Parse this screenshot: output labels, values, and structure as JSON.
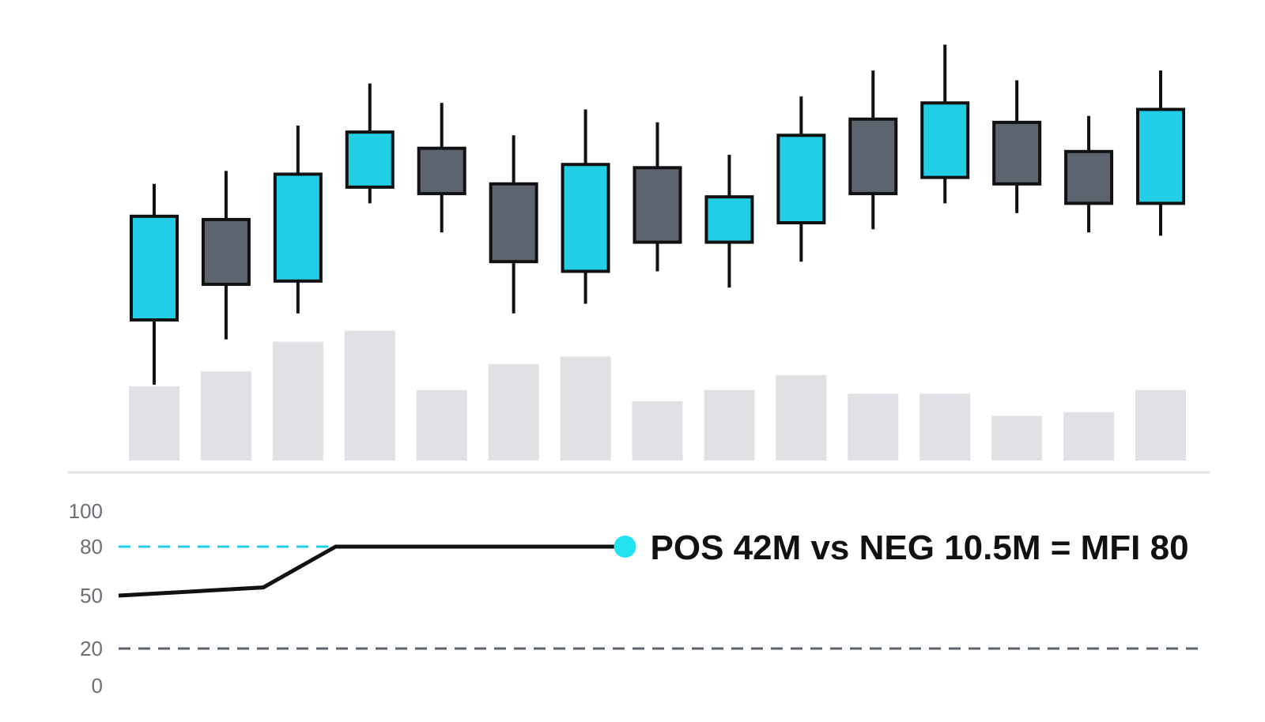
{
  "colors": {
    "bullish": "#22cde6",
    "bearish": "#5c6470",
    "outline": "#111111",
    "volume": "#e0e1e4",
    "separator": "#e4e5e7",
    "overbought_line": "#22cde6",
    "oversold_line": "#5c6470",
    "mfi_line": "#111111",
    "marker": "#22e3ef",
    "tick_text": "#6b6f75"
  },
  "chart_data": [
    {
      "type": "candlestick",
      "name": "price",
      "candles": [
        {
          "open": 30,
          "close": 62,
          "high": 72,
          "low": 10
        },
        {
          "open": 61,
          "close": 41,
          "high": 76,
          "low": 24
        },
        {
          "open": 42,
          "close": 75,
          "high": 90,
          "low": 32
        },
        {
          "open": 71,
          "close": 88,
          "high": 103,
          "low": 66
        },
        {
          "open": 83,
          "close": 69,
          "high": 97,
          "low": 57
        },
        {
          "open": 72,
          "close": 48,
          "high": 87,
          "low": 32
        },
        {
          "open": 45,
          "close": 78,
          "high": 95,
          "low": 35
        },
        {
          "open": 77,
          "close": 54,
          "high": 91,
          "low": 45
        },
        {
          "open": 54,
          "close": 68,
          "high": 81,
          "low": 40
        },
        {
          "open": 60,
          "close": 87,
          "high": 99,
          "low": 48
        },
        {
          "open": 92,
          "close": 69,
          "high": 107,
          "low": 58
        },
        {
          "open": 74,
          "close": 97,
          "high": 115,
          "low": 66
        },
        {
          "open": 91,
          "close": 72,
          "high": 104,
          "low": 63
        },
        {
          "open": 82,
          "close": 66,
          "high": 93,
          "low": 57
        },
        {
          "open": 66,
          "close": 95,
          "high": 107,
          "low": 56
        }
      ],
      "volume": [
        20,
        24,
        32,
        35,
        19,
        26,
        28,
        16,
        19,
        23,
        18,
        18,
        12,
        13,
        19
      ],
      "grid": false
    },
    {
      "type": "line",
      "name": "MFI",
      "x": [
        0,
        2,
        3,
        7
      ],
      "y": [
        50,
        55,
        80,
        80
      ],
      "ylim": [
        0,
        100
      ],
      "yticks": [
        "100",
        "80",
        "50",
        "20",
        "0"
      ],
      "ytick_values": [
        100,
        80,
        50,
        20,
        0
      ],
      "overbought": 80,
      "oversold": 20,
      "grid": false,
      "annotation": "POS 42M vs NEG 10.5M = MFI 80"
    }
  ]
}
